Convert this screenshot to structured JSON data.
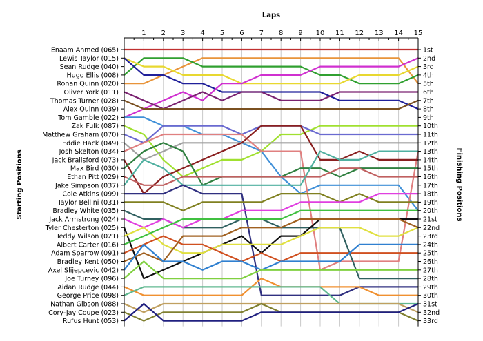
{
  "chart_data": {
    "type": "line",
    "title": "",
    "top_axis_label": "Laps",
    "left_axis_label": "Starting Positions",
    "right_axis_label": "Finishing Positions",
    "laps": [
      1,
      2,
      3,
      4,
      5,
      6,
      7,
      8,
      9,
      10,
      11,
      12,
      13,
      14,
      15
    ],
    "starting_order": [
      "Enaam Ahmed (065)",
      "Lewis Taylor (015)",
      "Sean Rudge (040)",
      "Hugo Ellis (008)",
      "Ronan Quinn (020)",
      "Oliver York (011)",
      "Thomas Turner (028)",
      "Alex Quinn (039)",
      "Tom Gamble (022)",
      "Zak Fulk (087)",
      "Matthew Graham (070)",
      "Eddie Hack (049)",
      "Josh Skelton (034)",
      "Jack Brailsford (073)",
      "Max Bird (030)",
      "Ethan Pitt (029)",
      "Jake Simpson (037)",
      "Cole Atkins (099)",
      "Taylor Bellini (031)",
      "Bradley White (035)",
      "Jack Armstrong (024)",
      "Tyler Chesterton (025)",
      "Teddy Wilson (021)",
      "Albert Carter (016)",
      "Adam Sparrow (091)",
      "Bradley Kent (050)",
      "Axel Slijepcevic (042)",
      "Joe Turney (096)",
      "Aidan Rudge (044)",
      "George Price (098)",
      "Nathan Gibson (088)",
      "Cory-Jay Coupe (023)",
      "Rufus Hunt (053)"
    ],
    "finishing_labels": [
      "1st",
      "2nd",
      "3rd",
      "4th",
      "5th",
      "6th",
      "7th",
      "8th",
      "9th",
      "10th",
      "11th",
      "12th",
      "13th",
      "14th",
      "15th",
      "16th",
      "17th",
      "18th",
      "19th",
      "20th",
      "21st",
      "22nd",
      "23rd",
      "24th",
      "25th",
      "26th",
      "27th",
      "28th",
      "29th",
      "30th",
      "31st",
      "32nd",
      "33rd"
    ],
    "series": [
      {
        "color": "#c03030",
        "positions": [
          1,
          1,
          1,
          1,
          1,
          1,
          1,
          1,
          1,
          1,
          1,
          1,
          1,
          1,
          1,
          1
        ]
      },
      {
        "color": "#e8943a",
        "positions": [
          5,
          5,
          4,
          3,
          2,
          2,
          2,
          2,
          2,
          2,
          2,
          2,
          2,
          2,
          2,
          5
        ]
      },
      {
        "color": "#30a030",
        "positions": [
          4,
          2,
          2,
          2,
          3,
          3,
          3,
          3,
          3,
          3,
          4,
          4,
          5,
          5,
          5,
          4
        ]
      },
      {
        "color": "#e8d830",
        "positions": [
          2,
          3,
          3,
          4,
          4,
          4,
          5,
          5,
          5,
          5,
          5,
          5,
          4,
          4,
          4,
          3
        ]
      },
      {
        "color": "#20209a",
        "positions": [
          2,
          4,
          4,
          5,
          5,
          6,
          6,
          6,
          6,
          6,
          6,
          7,
          7,
          7,
          7,
          8
        ]
      },
      {
        "color": "#d030d0",
        "positions": [
          9,
          8,
          7,
          6,
          7,
          5,
          5,
          4,
          4,
          4,
          3,
          3,
          3,
          3,
          3,
          2
        ]
      },
      {
        "color": "#7a2270",
        "positions": [
          6,
          7,
          8,
          7,
          6,
          7,
          6,
          6,
          7,
          7,
          7,
          6,
          6,
          6,
          6,
          6
        ]
      },
      {
        "color": "#7a5020",
        "positions": [
          7,
          8,
          8,
          8,
          8,
          8,
          8,
          8,
          8,
          8,
          8,
          8,
          8,
          8,
          8,
          7
        ]
      },
      {
        "color": "#4090d8",
        "positions": [
          9,
          9,
          10,
          10,
          11,
          11,
          12,
          13,
          16,
          18,
          17,
          17,
          17,
          17,
          17,
          20
        ]
      },
      {
        "color": "#a0e030",
        "positions": [
          10,
          11,
          14,
          16,
          15,
          14,
          14,
          13,
          11,
          11,
          10,
          10,
          10,
          10,
          10,
          10
        ]
      },
      {
        "color": "#6a6ad0",
        "positions": [
          11,
          12,
          10,
          10,
          10,
          10,
          11,
          10,
          10,
          10,
          11,
          11,
          11,
          11,
          11,
          11
        ]
      },
      {
        "color": "#a0a0a0",
        "positions": [
          12,
          14,
          13,
          12,
          12,
          12,
          12,
          12,
          12,
          12,
          12,
          12,
          12,
          12,
          12,
          12
        ]
      },
      {
        "color": "#e08080",
        "positions": [
          13,
          12,
          11,
          11,
          11,
          11,
          11,
          13,
          13,
          13,
          27,
          26,
          26,
          26,
          26,
          13
        ]
      },
      {
        "color": "#8a2020",
        "positions": [
          14,
          18,
          16,
          15,
          14,
          13,
          12,
          10,
          10,
          10,
          14,
          14,
          13,
          14,
          14,
          14
        ]
      },
      {
        "color": "#308040",
        "positions": [
          15,
          13,
          12,
          13,
          17,
          16,
          16,
          16,
          16,
          15,
          15,
          16,
          15,
          15,
          15,
          15
        ]
      },
      {
        "color": "#c06060",
        "positions": [
          16,
          17,
          17,
          16,
          16,
          16,
          16,
          16,
          16,
          16,
          16,
          15,
          15,
          16,
          16,
          16
        ]
      },
      {
        "color": "#50b0a0",
        "positions": [
          17,
          14,
          15,
          17,
          17,
          17,
          17,
          17,
          17,
          17,
          13,
          14,
          14,
          13,
          13,
          13
        ]
      },
      {
        "color": "#303080",
        "positions": [
          18,
          18,
          18,
          17,
          18,
          18,
          18,
          30,
          30,
          30,
          30,
          30,
          29,
          29,
          29,
          29
        ]
      },
      {
        "color": "#808020",
        "positions": [
          19,
          19,
          19,
          20,
          19,
          19,
          19,
          19,
          18,
          18,
          18,
          19,
          18,
          19,
          19,
          19
        ]
      },
      {
        "color": "#306060",
        "positions": [
          20,
          21,
          21,
          22,
          22,
          22,
          21,
          21,
          22,
          22,
          22,
          22,
          28,
          28,
          28,
          28
        ]
      },
      {
        "color": "#e040e0",
        "positions": [
          21,
          22,
          21,
          22,
          21,
          21,
          20,
          20,
          20,
          19,
          19,
          19,
          19,
          18,
          18,
          18
        ]
      },
      {
        "color": "#101010",
        "positions": [
          22,
          28,
          27,
          26,
          25,
          24,
          23,
          25,
          23,
          23,
          21,
          21,
          21,
          21,
          21,
          21
        ]
      },
      {
        "color": "#e0e040",
        "positions": [
          23,
          22,
          24,
          25,
          25,
          24,
          24,
          24,
          24,
          23,
          22,
          22,
          22,
          23,
          23,
          22
        ]
      },
      {
        "color": "#40c040",
        "positions": [
          24,
          23,
          22,
          21,
          21,
          21,
          21,
          21,
          21,
          20,
          20,
          20,
          20,
          20,
          20,
          20
        ]
      },
      {
        "color": "#d05020",
        "positions": [
          25,
          24,
          23,
          24,
          24,
          25,
          26,
          25,
          26,
          25,
          25,
          25,
          25,
          25,
          25,
          25
        ]
      },
      {
        "color": "#a06020",
        "positions": [
          26,
          25,
          26,
          23,
          23,
          23,
          22,
          22,
          22,
          21,
          21,
          21,
          21,
          21,
          21,
          22
        ]
      },
      {
        "color": "#3080d0",
        "positions": [
          27,
          24,
          26,
          26,
          27,
          26,
          26,
          27,
          26,
          26,
          26,
          26,
          24,
          24,
          24,
          24
        ]
      },
      {
        "color": "#80d040",
        "positions": [
          28,
          26,
          28,
          28,
          28,
          28,
          28,
          27,
          27,
          27,
          27,
          27,
          27,
          27,
          27,
          27
        ]
      },
      {
        "color": "#f09030",
        "positions": [
          29,
          30,
          30,
          30,
          30,
          30,
          30,
          28,
          29,
          29,
          29,
          29,
          29,
          30,
          30,
          30
        ]
      },
      {
        "color": "#60b890",
        "positions": [
          30,
          29,
          29,
          29,
          29,
          29,
          29,
          29,
          29,
          29,
          29,
          31,
          31,
          31,
          31,
          31
        ]
      },
      {
        "color": "#c0a060",
        "positions": [
          31,
          32,
          31,
          31,
          31,
          31,
          31,
          31,
          31,
          31,
          31,
          31,
          31,
          31,
          31,
          32
        ]
      },
      {
        "color": "#808030",
        "positions": [
          32,
          33,
          32,
          32,
          32,
          32,
          32,
          31,
          32,
          32,
          32,
          32,
          32,
          32,
          32,
          33
        ]
      },
      {
        "color": "#202080",
        "positions": [
          33,
          31,
          33,
          33,
          33,
          33,
          33,
          32,
          32,
          32,
          32,
          32,
          32,
          32,
          32,
          31
        ]
      }
    ]
  }
}
